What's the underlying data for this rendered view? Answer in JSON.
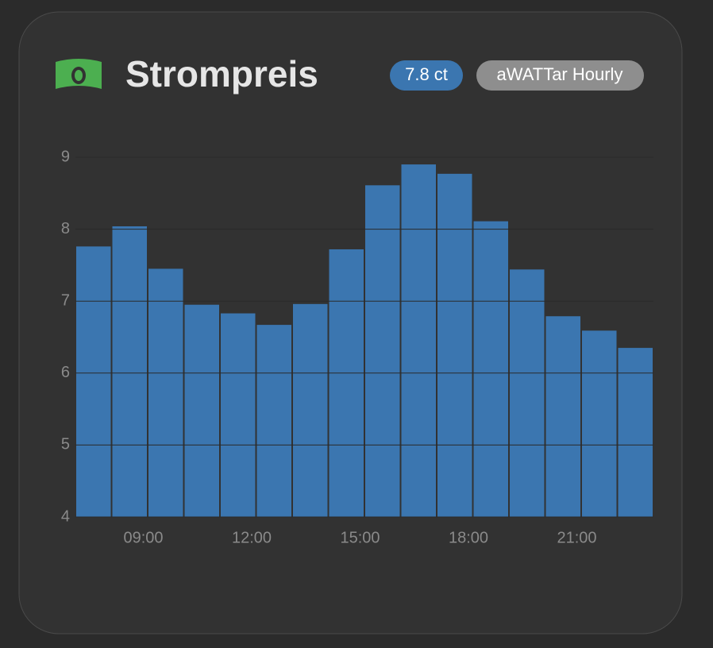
{
  "header": {
    "title": "Strompreis",
    "badge": "7.8 ct",
    "source": "aWATTar Hourly"
  },
  "chart_data": {
    "type": "bar",
    "categories": [
      null,
      "09:00",
      null,
      null,
      "12:00",
      null,
      null,
      "15:00",
      null,
      null,
      "18:00",
      null,
      null,
      "21:00",
      null,
      null
    ],
    "values": [
      7.76,
      8.04,
      7.45,
      6.95,
      6.83,
      6.67,
      6.96,
      7.72,
      8.61,
      8.9,
      8.77,
      8.11,
      7.44,
      6.79,
      6.59,
      6.35
    ],
    "color": "#3b76b0",
    "ylim": [
      4,
      9
    ],
    "yticks": [
      4,
      5,
      6,
      7,
      8,
      9
    ],
    "grid": true
  }
}
